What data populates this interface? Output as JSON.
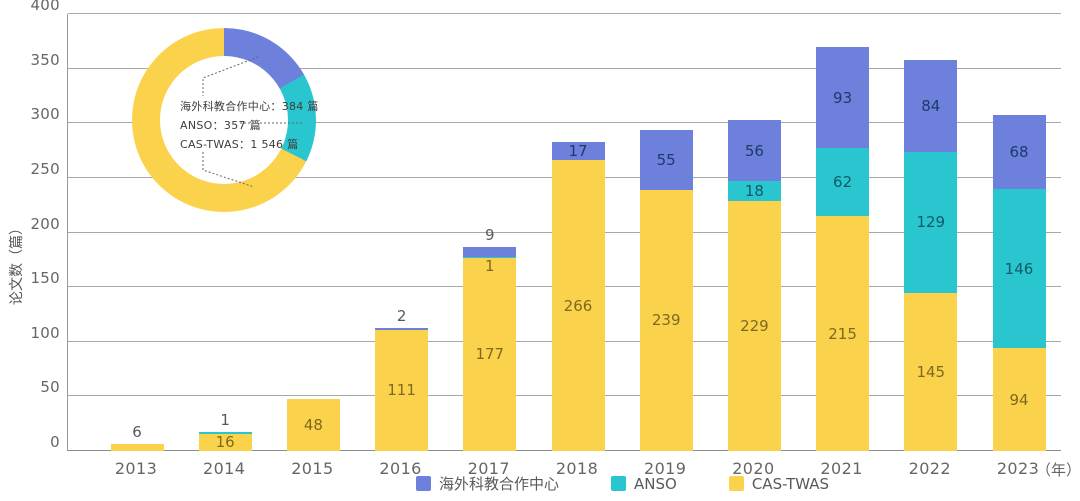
{
  "chart_data": {
    "type": "bar",
    "stacked": true,
    "title": "",
    "ylabel": "论文数（篇）",
    "x_axis_unit": "（年）",
    "ylim": [
      0,
      400
    ],
    "ytick_step": 50,
    "grid": true,
    "legend_position": "bottom",
    "categories": [
      "2013",
      "2014",
      "2015",
      "2016",
      "2017",
      "2018",
      "2019",
      "2020",
      "2021",
      "2022",
      "2023"
    ],
    "series": [
      {
        "name": "CAS-TWAS",
        "color": "#FBD24B",
        "label_color": "#7d6a1f",
        "values": [
          6,
          16,
          48,
          111,
          177,
          266,
          239,
          229,
          215,
          145,
          94
        ]
      },
      {
        "name": "ANSO",
        "color": "#2AC6CF",
        "label_color": "#0f5b66",
        "values": [
          0,
          1,
          0,
          0,
          1,
          0,
          0,
          18,
          62,
          129,
          146
        ]
      },
      {
        "name": "海外科教合作中心",
        "color": "#6C80DC",
        "label_color": "#1e3a6b",
        "values": [
          0,
          0,
          0,
          2,
          9,
          17,
          55,
          56,
          93,
          84,
          68
        ]
      }
    ],
    "outside_label_color": "#58595b",
    "legend": {
      "items": [
        {
          "label": "海外科教合作中心",
          "color": "#6C80DC"
        },
        {
          "label": "ANSO",
          "color": "#2AC6CF"
        },
        {
          "label": "CAS-TWAS",
          "color": "#FBD24B"
        }
      ]
    },
    "donut": {
      "type": "donut",
      "segments": [
        {
          "label": "海外科教合作中心",
          "value": 384,
          "color": "#6C80DC"
        },
        {
          "label": "ANSO",
          "value": 357,
          "color": "#2AC6CF"
        },
        {
          "label": "CAS-TWAS",
          "value": 1546,
          "color": "#FBD24B"
        }
      ],
      "display": [
        "海外科教合作中心：384 篇",
        "ANSO：357 篇",
        "CAS-TWAS：1 546 篇"
      ]
    }
  },
  "colors": {
    "grid": "#a8a8a8",
    "axis": "#8c8c8c",
    "tick_text": "#666666",
    "leader_line": "#666666"
  }
}
